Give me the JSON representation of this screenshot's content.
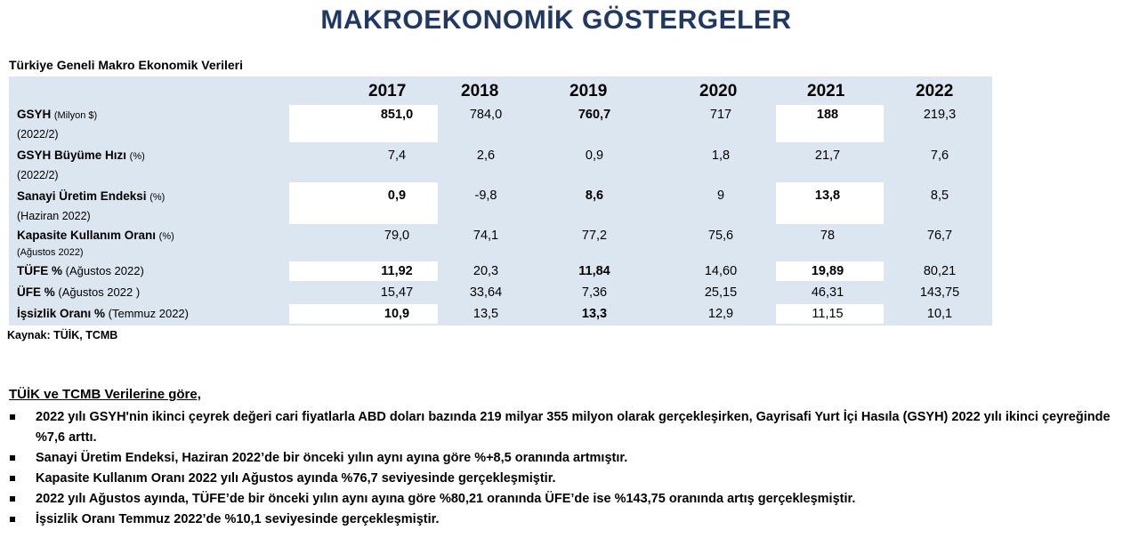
{
  "title": "MAKROEKONOMİK GÖSTERGELER",
  "subtitle": "Türkiye Geneli Makro Ekonomik Verileri",
  "years": [
    "2017",
    "2018",
    "2019",
    "2020",
    "2021",
    "2022"
  ],
  "rows": [
    {
      "label": "GSYH",
      "unit": "(Milyon $)",
      "note": "(2022/2)",
      "values": [
        "851,0",
        "784,0",
        "760,7",
        "717",
        "188",
        "219,3"
      ]
    },
    {
      "label": "GSYH Büyüme Hızı",
      "unit": "(%)",
      "note": "(2022/2)",
      "values": [
        "7,4",
        "2,6",
        "0,9",
        "1,8",
        "21,7",
        "7,6"
      ]
    },
    {
      "label": "Sanayi Üretim Endeksi",
      "unit": "(%)",
      "note": "(Haziran 2022)",
      "values": [
        "0,9",
        "-9,8",
        "8,6",
        "9",
        "13,8",
        "8,5"
      ]
    },
    {
      "label": "Kapasite Kullanım Oranı",
      "unit": "(%)",
      "note": "(Ağustos 2022)",
      "values": [
        "79,0",
        "74,1",
        "77,2",
        "75,6",
        "78",
        "76,7"
      ]
    },
    {
      "label": "TÜFE %",
      "unit": "(Ağustos 2022)",
      "note": "",
      "values": [
        "11,92",
        "20,3",
        "11,84",
        "14,60",
        "19,89",
        "80,21"
      ]
    },
    {
      "label": "ÜFE %",
      "unit": "(Ağustos 2022 )",
      "note": "",
      "values": [
        "15,47",
        "33,64",
        "7,36",
        "25,15",
        "46,31",
        "143,75"
      ]
    },
    {
      "label": "İşsizlik Oranı %",
      "unit": "(Temmuz 2022)",
      "note": "",
      "values": [
        "10,9",
        "13,5",
        "13,3",
        "12,9",
        "11,15",
        "10,1"
      ]
    }
  ],
  "source": "Kaynak: TÜİK, TCMB",
  "notes_title": "TÜİK ve TCMB Verilerine göre,",
  "notes": [
    "2022 yılı GSYH'nin ikinci çeyrek değeri cari fiyatlarla ABD doları bazında 219 milyar 355 milyon olarak gerçekleşirken, Gayrisafi Yurt İçi Hasıla (GSYH) 2022 yılı ikinci çeyreğinde %7,6 arttı.",
    "Sanayi Üretim Endeksi, Haziran 2022’de bir önceki yılın aynı ayına göre %+8,5 oranında artmıştır.",
    "Kapasite Kullanım Oranı 2022 yılı Ağustos ayında %76,7 seviyesinde gerçekleşmiştir.",
    "2022 yılı Ağustos ayında, TÜFE’de bir önceki yılın aynı ayına göre %80,21 oranında ÜFE’de ise %143,75 oranında artış gerçekleşmiştir.",
    "İşsizlik Oranı Temmuz 2022’de %10,1 seviyesinde gerçekleşmiştir."
  ]
}
